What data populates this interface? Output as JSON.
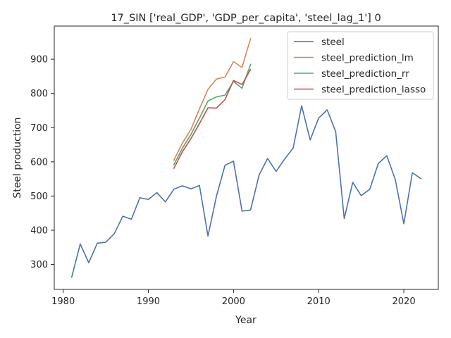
{
  "chart_data": {
    "type": "line",
    "title": "17_SIN ['real_GDP', 'GDP_per_capita', 'steel_lag_1'] 0",
    "xlabel": "Year",
    "ylabel": "Steel production",
    "xlim": [
      1978.95,
      2024.05
    ],
    "ylim": [
      227,
      997
    ],
    "xticks": [
      1980,
      1990,
      2000,
      2010,
      2020
    ],
    "yticks": [
      300,
      400,
      500,
      600,
      700,
      800,
      900
    ],
    "grid": false,
    "legend_position": "top-right",
    "series": [
      {
        "name": "steel",
        "color": "#4c72b0",
        "x": [
          1981,
          1982,
          1983,
          1984,
          1985,
          1986,
          1987,
          1988,
          1989,
          1990,
          1991,
          1992,
          1993,
          1994,
          1995,
          1996,
          1997,
          1998,
          1999,
          2000,
          2001,
          2002,
          2003,
          2004,
          2005,
          2006,
          2007,
          2008,
          2009,
          2010,
          2011,
          2012,
          2013,
          2014,
          2015,
          2016,
          2017,
          2018,
          2019,
          2020,
          2021,
          2022
        ],
        "y": [
          263,
          360,
          305,
          362,
          365,
          390,
          441,
          432,
          495,
          490,
          510,
          483,
          520,
          530,
          521,
          531,
          383,
          500,
          590,
          602,
          456,
          459,
          561,
          610,
          572,
          608,
          640,
          764,
          664,
          728,
          752,
          688,
          434,
          540,
          501,
          520,
          595,
          618,
          548,
          419,
          568,
          551
        ]
      },
      {
        "name": "steel_prediction_lm",
        "color": "#dd8452",
        "x": [
          1993,
          1994,
          1995,
          1996,
          1997,
          1998,
          1999,
          2000,
          2001,
          2002
        ],
        "y": [
          605,
          655,
          695,
          755,
          812,
          842,
          848,
          893,
          876,
          960
        ]
      },
      {
        "name": "steel_prediction_rr",
        "color": "#55a868",
        "x": [
          1993,
          1994,
          1995,
          1996,
          1997,
          1998,
          1999,
          2000,
          2001,
          2002
        ],
        "y": [
          592,
          640,
          680,
          728,
          778,
          790,
          795,
          835,
          815,
          885
        ]
      },
      {
        "name": "steel_prediction_lasso",
        "color": "#c44e52",
        "x": [
          1993,
          1994,
          1995,
          1996,
          1997,
          1998,
          1999,
          2000,
          2001,
          2002
        ],
        "y": [
          581,
          630,
          668,
          712,
          758,
          757,
          782,
          838,
          826,
          870
        ]
      }
    ]
  }
}
